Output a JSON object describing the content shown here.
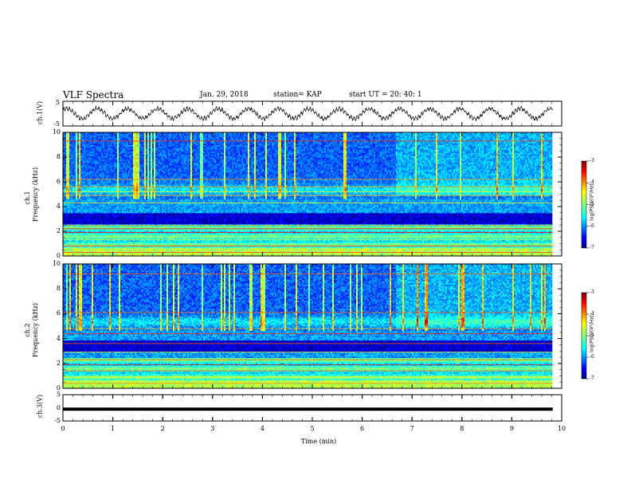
{
  "header": {
    "title": "VLF Spectra",
    "date": "Jan. 29, 2018",
    "station": "station= KAP",
    "start": "start  UT =   20: 40: 1"
  },
  "chart_data": [
    {
      "type": "line",
      "name": "ch1-waveform",
      "ylabel": "ch.1(V)",
      "ylim": [
        -5,
        5
      ],
      "yticks": [
        "5",
        "-5"
      ],
      "xlim": [
        0,
        10
      ],
      "description_of_signal": "oscillating voltage, about 16 cycles over the record, amplitude about 2 V",
      "x_end": 9.82
    },
    {
      "type": "heatmap",
      "name": "ch1-spectrogram",
      "ylabel": "ch.1\nFrequency (kHz)",
      "ylabel_line1": "ch.1",
      "ylabel_line2": "Frequency  (kHz)",
      "ylim": [
        0,
        10
      ],
      "yticks": [
        "0",
        "2",
        "4",
        "6",
        "8",
        "10"
      ],
      "xlim": [
        0,
        10
      ],
      "x_end": 9.82,
      "colorbar": {
        "label": "log(PSD)(V²/Hz)",
        "range": [
          -7,
          -3
        ],
        "ticks": [
          "-3",
          "-4",
          "-5",
          "-6",
          "-7"
        ]
      }
    },
    {
      "type": "heatmap",
      "name": "ch2-spectrogram",
      "ylabel": "ch.2\nFrequency (kHz)",
      "ylabel_line1": "ch.2",
      "ylabel_line2": "Frequency  (kHz)",
      "ylim": [
        0,
        10
      ],
      "yticks": [
        "0",
        "2",
        "4",
        "6",
        "8",
        "10"
      ],
      "xlim": [
        0,
        10
      ],
      "x_end": 9.82,
      "colorbar": {
        "label": "log(PSD)(V²/Hz)",
        "range": [
          -7,
          -3
        ],
        "ticks": [
          "-3",
          "-4",
          "-5",
          "-6",
          "-7"
        ]
      }
    },
    {
      "type": "line",
      "name": "ch3-waveform",
      "ylabel": "ch.3(V)",
      "ylim": [
        -5,
        5
      ],
      "yticks": [
        "5",
        "0",
        "-5"
      ],
      "xlim": [
        0,
        10
      ],
      "constant_value": -0.5,
      "x_end": 9.82,
      "xlabel": "Time  (min)",
      "xticks": [
        "0",
        "1",
        "2",
        "3",
        "4",
        "5",
        "6",
        "7",
        "8",
        "9",
        "10"
      ]
    }
  ]
}
